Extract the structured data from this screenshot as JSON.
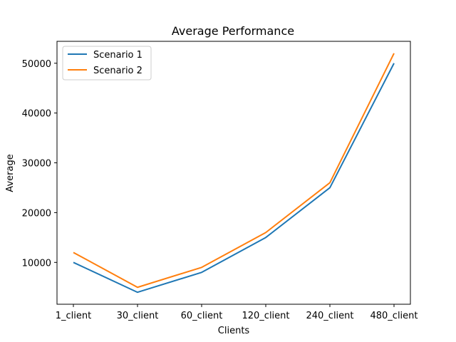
{
  "chart_data": {
    "type": "line",
    "title": "Average Performance",
    "xlabel": "Clients",
    "ylabel": "Average",
    "categories": [
      "1_client",
      "30_client",
      "60_client",
      "120_client",
      "240_client",
      "480_client"
    ],
    "series": [
      {
        "name": "Scenario 1",
        "color": "#1f77b4",
        "values": [
          10000,
          4000,
          8000,
          15000,
          25000,
          50000
        ]
      },
      {
        "name": "Scenario 2",
        "color": "#ff7f0e",
        "values": [
          12000,
          5000,
          9000,
          16000,
          26000,
          52000
        ]
      }
    ],
    "ylim": [
      1600,
      54400
    ],
    "yticks": [
      10000,
      20000,
      30000,
      40000,
      50000
    ],
    "grid": false,
    "legend": "upper-left"
  }
}
